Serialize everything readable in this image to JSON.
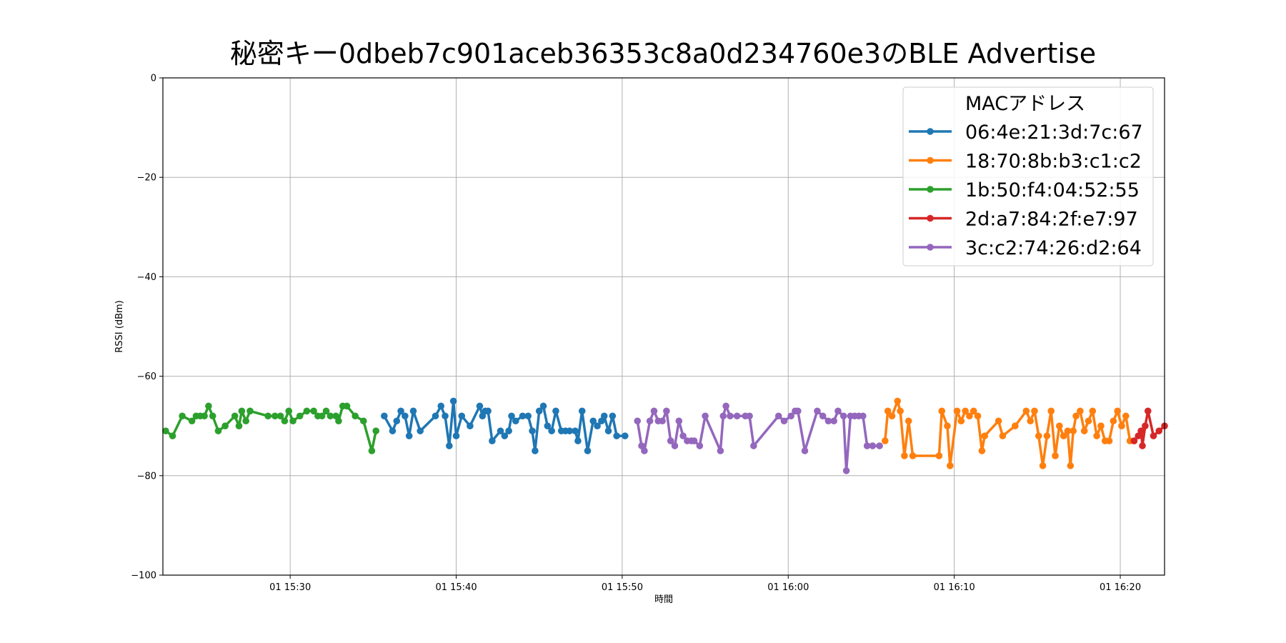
{
  "chart_data": {
    "type": "line",
    "title": "秘密キー0dbeb7c901aceb36353c8a0d234760e3のBLE Advertise",
    "xlabel": "時間",
    "ylabel": "RSSI (dBm)",
    "ylim": [
      -100,
      0
    ],
    "yticks": [
      0,
      -20,
      -40,
      -60,
      -80,
      -100
    ],
    "yticklabels": [
      "0",
      "−20",
      "−40",
      "−60",
      "−80",
      "−100"
    ],
    "xlim": [
      "15:22:20",
      "16:22:40"
    ],
    "xticks": [
      "15:30",
      "15:40",
      "15:50",
      "16:00",
      "16:10",
      "16:20"
    ],
    "xticklabels": [
      "01 15:30",
      "01 15:40",
      "01 15:50",
      "01 16:00",
      "01 16:10",
      "01 16:20"
    ],
    "grid": true,
    "legend": {
      "title": "MACアドレス",
      "placement": "top-right"
    },
    "series": [
      {
        "name": "06:4e:21:3d:7c:67",
        "color": "#1f77b4",
        "x": [
          "15:35:40",
          "15:36:10",
          "15:36:25",
          "15:36:40",
          "15:36:55",
          "15:37:10",
          "15:37:25",
          "15:37:50",
          "15:38:45",
          "15:39:05",
          "15:39:20",
          "15:39:35",
          "15:39:50",
          "15:40:00",
          "15:40:20",
          "15:40:50",
          "15:41:25",
          "15:41:35",
          "15:41:45",
          "15:41:55",
          "15:42:10",
          "15:42:40",
          "15:42:55",
          "15:43:10",
          "15:43:20",
          "15:43:35",
          "15:44:00",
          "15:44:20",
          "15:44:35",
          "15:44:45",
          "15:45:00",
          "15:45:15",
          "15:45:30",
          "15:45:45",
          "15:46:00",
          "15:46:20",
          "15:46:35",
          "15:46:50",
          "15:47:10",
          "15:47:20",
          "15:47:35",
          "15:47:55",
          "15:48:15",
          "15:48:30",
          "15:48:45",
          "15:48:55",
          "15:49:10",
          "15:49:25",
          "15:49:40",
          "15:50:10"
        ],
        "y": [
          -68,
          -71,
          -69,
          -67,
          -68,
          -72,
          -67,
          -71,
          -68,
          -66,
          -68,
          -74,
          -65,
          -72,
          -68,
          -70,
          -66,
          -68,
          -67,
          -67,
          -73,
          -71,
          -72,
          -71,
          -68,
          -69,
          -68,
          -68,
          -71,
          -75,
          -67,
          -66,
          -70,
          -71,
          -67,
          -71,
          -71,
          -71,
          -71,
          -73,
          -67,
          -75,
          -69,
          -70,
          -69,
          -68,
          -71,
          -68,
          -72,
          -72
        ]
      },
      {
        "name": "18:70:8b:b3:c1:c2",
        "color": "#ff7f0e",
        "x": [
          "16:05:50",
          "16:06:00",
          "16:06:15",
          "16:06:35",
          "16:06:45",
          "16:07:00",
          "16:07:15",
          "16:07:30",
          "16:09:05",
          "16:09:15",
          "16:09:35",
          "16:09:45",
          "16:10:10",
          "16:10:25",
          "16:10:40",
          "16:10:55",
          "16:11:10",
          "16:11:25",
          "16:11:40",
          "16:11:50",
          "16:12:40",
          "16:12:55",
          "16:13:40",
          "16:14:20",
          "16:14:35",
          "16:14:50",
          "16:15:05",
          "16:15:20",
          "16:15:35",
          "16:15:50",
          "16:16:05",
          "16:16:20",
          "16:16:35",
          "16:16:50",
          "16:17:00",
          "16:17:10",
          "16:17:20",
          "16:17:35",
          "16:17:50",
          "16:18:05",
          "16:18:20",
          "16:18:35",
          "16:18:50",
          "16:19:05",
          "16:19:20",
          "16:19:35",
          "16:19:50",
          "16:20:05",
          "16:20:20",
          "16:20:35",
          "16:20:50"
        ],
        "y": [
          -73,
          -67,
          -68,
          -65,
          -67,
          -76,
          -69,
          -76,
          -76,
          -67,
          -70,
          -78,
          -67,
          -69,
          -67,
          -68,
          -67,
          -68,
          -75,
          -72,
          -69,
          -72,
          -70,
          -67,
          -69,
          -67,
          -72,
          -78,
          -72,
          -67,
          -76,
          -70,
          -72,
          -71,
          -78,
          -71,
          -68,
          -67,
          -71,
          -69,
          -67,
          -72,
          -70,
          -73,
          -73,
          -69,
          -67,
          -70,
          -68,
          -73,
          -73
        ]
      },
      {
        "name": "1b:50:f4:04:52:55",
        "color": "#2ca02c",
        "x": [
          "15:22:30",
          "15:22:55",
          "15:23:30",
          "15:24:05",
          "15:24:20",
          "15:24:35",
          "15:24:50",
          "15:25:05",
          "15:25:20",
          "15:25:40",
          "15:26:05",
          "15:26:40",
          "15:26:55",
          "15:27:05",
          "15:27:20",
          "15:27:35",
          "15:28:40",
          "15:29:05",
          "15:29:25",
          "15:29:40",
          "15:29:55",
          "15:30:10",
          "15:30:35",
          "15:31:00",
          "15:31:25",
          "15:31:40",
          "15:31:55",
          "15:32:10",
          "15:32:25",
          "15:32:45",
          "15:32:55",
          "15:33:10",
          "15:33:25",
          "15:33:55",
          "15:34:25",
          "15:34:55",
          "15:35:10"
        ],
        "y": [
          -71,
          -72,
          -68,
          -69,
          -68,
          -68,
          -68,
          -66,
          -68,
          -71,
          -70,
          -68,
          -70,
          -67,
          -69,
          -67,
          -68,
          -68,
          -68,
          -69,
          -67,
          -69,
          -68,
          -67,
          -67,
          -68,
          -68,
          -67,
          -68,
          -68,
          -69,
          -66,
          -66,
          -68,
          -69,
          -75,
          -71
        ]
      },
      {
        "name": "2d:a7:84:2f:e7:97",
        "color": "#d62728",
        "x": [
          "16:20:50",
          "16:21:05",
          "16:21:15",
          "16:21:20",
          "16:21:30",
          "16:21:40",
          "16:22:00",
          "16:22:20",
          "16:22:40"
        ],
        "y": [
          -73,
          -72,
          -71,
          -74,
          -70,
          -67,
          -72,
          -71,
          -70
        ]
      },
      {
        "name": "3c:c2:74:26:d2:64",
        "color": "#9467bd",
        "x": [
          "15:50:55",
          "15:51:10",
          "15:51:20",
          "15:51:40",
          "15:51:55",
          "15:52:10",
          "15:52:25",
          "15:52:40",
          "15:52:55",
          "15:53:10",
          "15:53:25",
          "15:53:40",
          "15:53:55",
          "15:54:10",
          "15:54:20",
          "15:54:40",
          "15:55:00",
          "15:55:55",
          "15:56:05",
          "15:56:15",
          "15:56:30",
          "15:56:55",
          "15:57:25",
          "15:57:40",
          "15:57:55",
          "15:59:25",
          "15:59:45",
          "16:00:10",
          "16:00:25",
          "16:00:35",
          "16:01:00",
          "16:01:45",
          "16:02:05",
          "16:02:25",
          "16:02:45",
          "16:03:00",
          "16:03:20",
          "16:03:30",
          "16:03:45",
          "16:04:00",
          "16:04:15",
          "16:04:30",
          "16:04:45",
          "16:05:05",
          "16:05:30"
        ],
        "y": [
          -69,
          -74,
          -75,
          -69,
          -67,
          -69,
          -69,
          -67,
          -73,
          -74,
          -69,
          -72,
          -73,
          -73,
          -73,
          -74,
          -68,
          -75,
          -68,
          -66,
          -68,
          -68,
          -68,
          -68,
          -74,
          -68,
          -69,
          -68,
          -67,
          -67,
          -75,
          -67,
          -68,
          -69,
          -69,
          -67,
          -68,
          -79,
          -68,
          -68,
          -68,
          -68,
          -74,
          -74,
          -74
        ]
      }
    ]
  }
}
